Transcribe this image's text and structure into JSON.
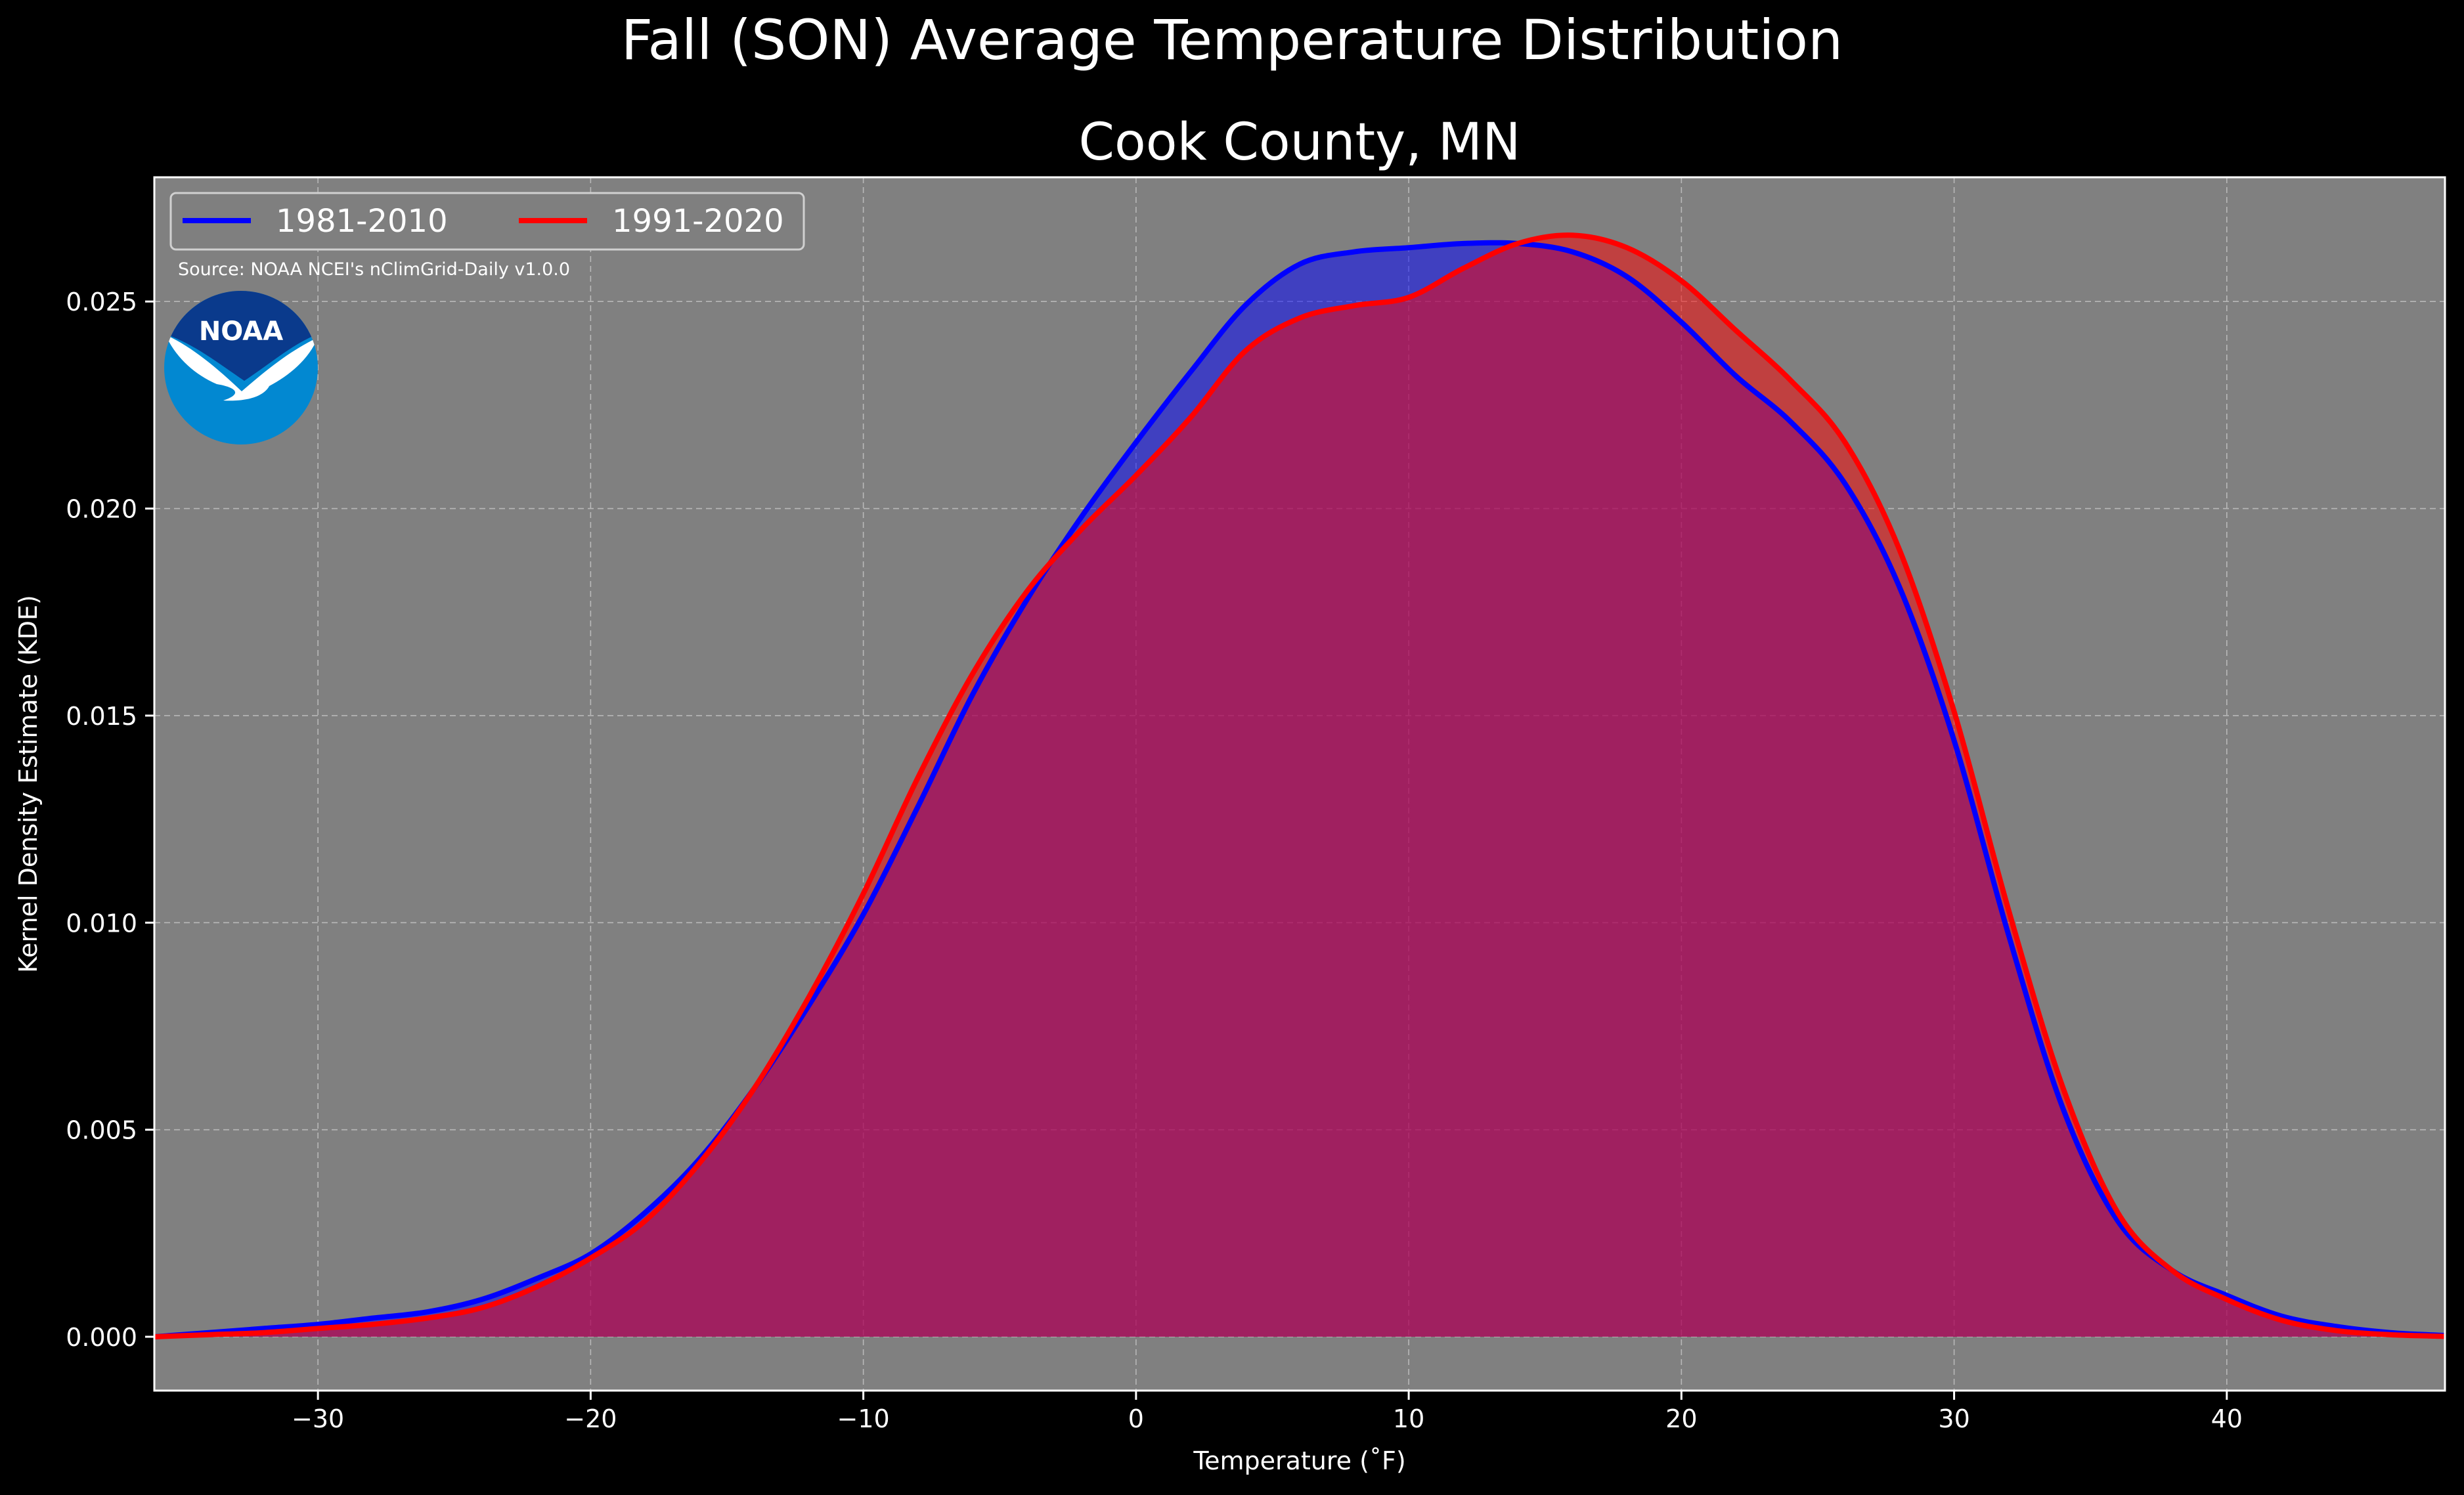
{
  "chart_data": {
    "type": "area",
    "suptitle": "Fall (SON) Average Temperature Distribution",
    "title": "Cook County, MN",
    "xlabel": "Temperature (˚F)",
    "ylabel": "Kernel Density Estimate (KDE)",
    "source": "Source: NOAA NCEI's nClimGrid-Daily v1.0.0",
    "logo_text": "NOAA",
    "xlim": [
      -36,
      48
    ],
    "ylim": [
      -0.0013,
      0.028
    ],
    "x_ticks": [
      -30,
      -20,
      -10,
      0,
      10,
      20,
      30,
      40
    ],
    "x_tick_labels": [
      "−30",
      "−20",
      "−10",
      "0",
      "10",
      "20",
      "30",
      "40"
    ],
    "y_ticks": [
      0.0,
      0.005,
      0.01,
      0.015,
      0.02,
      0.025
    ],
    "y_tick_labels": [
      "0.000",
      "0.005",
      "0.010",
      "0.015",
      "0.020",
      "0.025"
    ],
    "grid": true,
    "legend_position": "top-left",
    "background_color": "#808080",
    "series": [
      {
        "name": "1981-2010",
        "color": "#0000ff",
        "x": [
          -36,
          -34,
          -32,
          -30,
          -28,
          -26,
          -24,
          -22,
          -20,
          -18,
          -16,
          -14,
          -12,
          -10,
          -8,
          -6,
          -4,
          -2,
          0,
          2,
          4,
          6,
          8,
          10,
          12,
          14,
          16,
          18,
          20,
          22,
          24,
          26,
          28,
          30,
          32,
          34,
          36,
          38,
          40,
          42,
          44,
          46,
          48
        ],
        "y": [
          0.0,
          0.0001,
          0.0002,
          0.0003,
          0.00045,
          0.0006,
          0.0009,
          0.0014,
          0.002,
          0.003,
          0.0043,
          0.006,
          0.008,
          0.0102,
          0.0128,
          0.0155,
          0.0178,
          0.0198,
          0.0216,
          0.0233,
          0.0249,
          0.0259,
          0.0262,
          0.0263,
          0.0264,
          0.0264,
          0.0262,
          0.0256,
          0.0245,
          0.0232,
          0.0221,
          0.0206,
          0.0181,
          0.0144,
          0.0097,
          0.0055,
          0.0028,
          0.0016,
          0.001,
          0.0005,
          0.00025,
          0.0001,
          3e-05
        ]
      },
      {
        "name": "1991-2020",
        "color": "#ff0000",
        "x": [
          -36,
          -34,
          -32,
          -30,
          -28,
          -26,
          -24,
          -22,
          -20,
          -18,
          -16,
          -14,
          -12,
          -10,
          -8,
          -6,
          -4,
          -2,
          0,
          2,
          4,
          6,
          8,
          10,
          12,
          14,
          16,
          18,
          20,
          22,
          24,
          26,
          28,
          30,
          32,
          34,
          36,
          38,
          40,
          42,
          44,
          46,
          48
        ],
        "y": [
          0.0,
          5e-05,
          0.0001,
          0.0002,
          0.0003,
          0.00045,
          0.0007,
          0.0012,
          0.0019,
          0.0028,
          0.0042,
          0.006,
          0.0082,
          0.0107,
          0.0135,
          0.016,
          0.018,
          0.0195,
          0.0208,
          0.0222,
          0.0238,
          0.0246,
          0.0249,
          0.0251,
          0.0258,
          0.0264,
          0.0266,
          0.0263,
          0.0255,
          0.0243,
          0.0231,
          0.0216,
          0.019,
          0.0151,
          0.0103,
          0.006,
          0.003,
          0.0016,
          0.0009,
          0.0004,
          0.00015,
          5e-05,
          1e-05
        ]
      }
    ]
  }
}
